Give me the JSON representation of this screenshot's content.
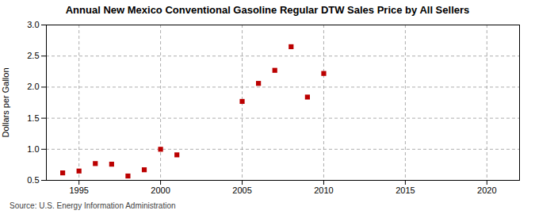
{
  "chart_data": {
    "type": "scatter",
    "title": "Annual New Mexico Conventional Gasoline Regular DTW Sales Price by All Sellers",
    "ylabel": "Dollars per Gallon",
    "source": "Source: U.S. Energy Information Administration",
    "x": [
      1994,
      1995,
      1996,
      1997,
      1998,
      1999,
      2000,
      2001,
      2005,
      2006,
      2007,
      2008,
      2009,
      2010
    ],
    "values": [
      0.62,
      0.65,
      0.77,
      0.76,
      0.57,
      0.67,
      1.0,
      0.91,
      1.77,
      2.06,
      2.27,
      2.65,
      1.84,
      2.22
    ],
    "color": "#bb0000",
    "marker": "square",
    "xlim": [
      1993,
      2022
    ],
    "xticks": [
      1995,
      2000,
      2005,
      2010,
      2015,
      2020
    ],
    "ylim": [
      0.5,
      3.0
    ],
    "yticks": [
      0.5,
      {
        "value": 1.0,
        "label": "1.0"
      },
      1.5,
      {
        "value": 2.0,
        "label": "2.0"
      },
      2.5,
      {
        "value": 3.0,
        "label": "3.0"
      }
    ],
    "grid": true
  }
}
